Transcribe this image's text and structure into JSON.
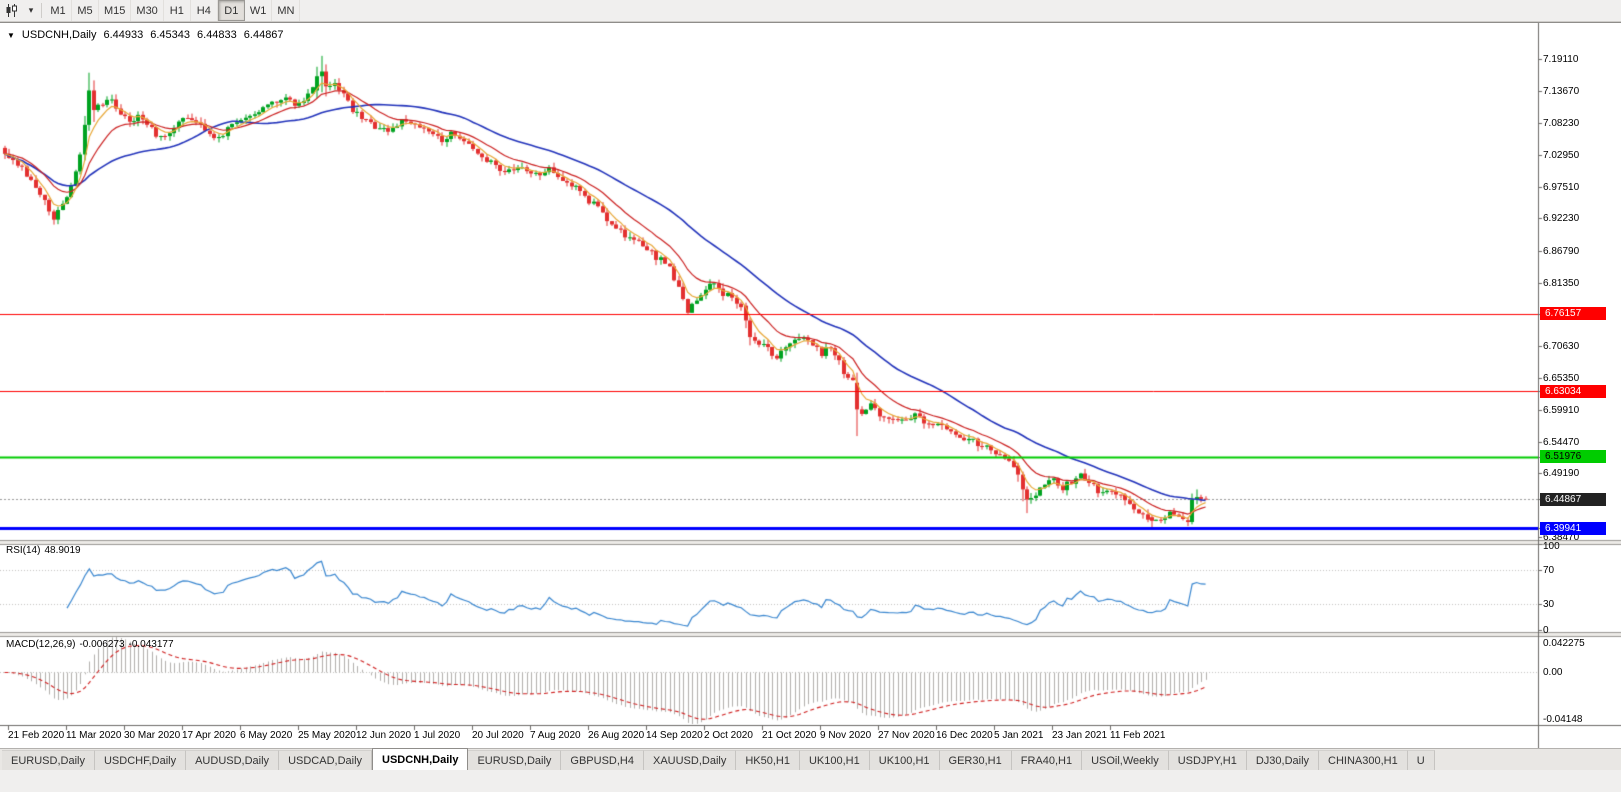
{
  "toolbar": {
    "chart_type_icon": "candlestick-chart-icon",
    "chart_type_dropdown_icon": "chevron-down-icon",
    "timeframes": [
      "M1",
      "M5",
      "M15",
      "M30",
      "H1",
      "H4",
      "D1",
      "W1",
      "MN"
    ],
    "active_timeframe": "D1"
  },
  "chart": {
    "symbol_label": "USDCNH,Daily",
    "one_click_icon": "▼",
    "ohlc": {
      "open": "6.44933",
      "high": "6.45343",
      "low": "6.44833",
      "close": "6.44867"
    }
  },
  "indicators": {
    "rsi": {
      "label": "RSI(14)",
      "value": "48.9019",
      "axis": [
        "100",
        "70",
        "30",
        "0"
      ],
      "levels": [
        70,
        30
      ],
      "line_color": "#3a87d0"
    },
    "macd": {
      "label": "MACD(12,26,9)",
      "value1": "-0.006273",
      "value2": "-0.043177",
      "axis_max": "0.042275",
      "axis_zero": "0.00",
      "axis_min": "-0.04148",
      "hist_color": "#b2b0ad",
      "signal_color": "#d02020"
    }
  },
  "price_axis": {
    "ticks": [
      "7.19110",
      "7.13670",
      "7.08230",
      "7.02950",
      "6.97510",
      "6.92230",
      "6.86790",
      "6.81350",
      "6.70630",
      "6.65350",
      "6.59910",
      "6.54470",
      "6.49190",
      "6.38470"
    ],
    "badges": [
      {
        "name": "resistance-upper",
        "value": "6.76157",
        "bg": "#ff0000",
        "fg": "#ffffff"
      },
      {
        "name": "resistance-lower",
        "value": "6.63034",
        "bg": "#ff0000",
        "fg": "#ffffff"
      },
      {
        "name": "support-green",
        "value": "6.51976",
        "bg": "#00cc00",
        "fg": "#000000"
      },
      {
        "name": "current-price",
        "value": "6.44867",
        "bg": "#222222",
        "fg": "#ffffff"
      },
      {
        "name": "support-blue",
        "value": "6.39941",
        "bg": "#0000ff",
        "fg": "#ffffff"
      }
    ]
  },
  "tabs": {
    "items": [
      "EURUSD,Daily",
      "USDCHF,Daily",
      "AUDUSD,Daily",
      "USDCAD,Daily",
      "USDCNH,Daily",
      "EURUSD,Daily",
      "GBPUSD,H4",
      "XAUUSD,Daily",
      "HK50,H1",
      "UK100,H1",
      "UK100,H1",
      "GER30,H1",
      "FRA40,H1",
      "USOil,Weekly",
      "USDJPY,H1",
      "DJ30,Daily",
      "CHINA300,H1",
      "U"
    ],
    "active_index": 4
  },
  "chart_data": {
    "type": "candlestick",
    "symbol": "USDCNH",
    "timeframe": "Daily",
    "bars": 270,
    "visible_high": 7.1964,
    "visible_low": 6.401,
    "last_ohlc": {
      "open": 6.44933,
      "high": 6.45343,
      "low": 6.44833,
      "close": 6.44867
    },
    "x_labels": [
      "21 Feb 2020",
      "11 Mar 2020",
      "30 Mar 2020",
      "17 Apr 2020",
      "6 May 2020",
      "25 May 2020",
      "12 Jun 2020",
      "1 Jul 2020",
      "20 Jul 2020",
      "7 Aug 2020",
      "26 Aug 2020",
      "14 Sep 2020",
      "2 Oct 2020",
      "21 Oct 2020",
      "9 Nov 2020",
      "27 Nov 2020",
      "16 Dec 2020",
      "5 Jan 2021",
      "23 Jan 2021",
      "11 Feb 2021"
    ],
    "colors": {
      "up": "#00a321",
      "down": "#e33030"
    },
    "close_anchors": [
      [
        0,
        7.035
      ],
      [
        2,
        7.02
      ],
      [
        4,
        7.005
      ],
      [
        6,
        6.988
      ],
      [
        8,
        6.962
      ],
      [
        10,
        6.938
      ],
      [
        11,
        6.924
      ],
      [
        13,
        6.95
      ],
      [
        15,
        6.975
      ],
      [
        17,
        7.03
      ],
      [
        18,
        7.08
      ],
      [
        19,
        7.138
      ],
      [
        20,
        7.105
      ],
      [
        22,
        7.115
      ],
      [
        24,
        7.122
      ],
      [
        26,
        7.1
      ],
      [
        28,
        7.088
      ],
      [
        30,
        7.095
      ],
      [
        32,
        7.078
      ],
      [
        34,
        7.065
      ],
      [
        36,
        7.06
      ],
      [
        38,
        7.075
      ],
      [
        40,
        7.088
      ],
      [
        42,
        7.093
      ],
      [
        44,
        7.078
      ],
      [
        46,
        7.065
      ],
      [
        48,
        7.06
      ],
      [
        50,
        7.072
      ],
      [
        52,
        7.082
      ],
      [
        54,
        7.09
      ],
      [
        56,
        7.098
      ],
      [
        58,
        7.108
      ],
      [
        60,
        7.118
      ],
      [
        62,
        7.126
      ],
      [
        64,
        7.118
      ],
      [
        66,
        7.112
      ],
      [
        68,
        7.135
      ],
      [
        70,
        7.162
      ],
      [
        71,
        7.17
      ],
      [
        72,
        7.145
      ],
      [
        74,
        7.152
      ],
      [
        76,
        7.132
      ],
      [
        78,
        7.105
      ],
      [
        80,
        7.092
      ],
      [
        82,
        7.085
      ],
      [
        84,
        7.07
      ],
      [
        86,
        7.072
      ],
      [
        88,
        7.08
      ],
      [
        90,
        7.088
      ],
      [
        92,
        7.082
      ],
      [
        94,
        7.076
      ],
      [
        96,
        7.062
      ],
      [
        98,
        7.052
      ],
      [
        100,
        7.065
      ],
      [
        102,
        7.055
      ],
      [
        104,
        7.044
      ],
      [
        106,
        7.032
      ],
      [
        108,
        7.02
      ],
      [
        110,
        7.012
      ],
      [
        112,
        7.002
      ],
      [
        114,
        7.004
      ],
      [
        116,
        7.008
      ],
      [
        118,
        6.994
      ],
      [
        120,
        7.0
      ],
      [
        122,
        7.006
      ],
      [
        124,
        6.99
      ],
      [
        126,
        6.982
      ],
      [
        129,
        6.968
      ],
      [
        132,
        6.945
      ],
      [
        135,
        6.922
      ],
      [
        138,
        6.9
      ],
      [
        141,
        6.885
      ],
      [
        144,
        6.868
      ],
      [
        147,
        6.852
      ],
      [
        149,
        6.838
      ],
      [
        151,
        6.802
      ],
      [
        153,
        6.765
      ],
      [
        155,
        6.785
      ],
      [
        157,
        6.802
      ],
      [
        159,
        6.812
      ],
      [
        161,
        6.796
      ],
      [
        163,
        6.788
      ],
      [
        165,
        6.775
      ],
      [
        166,
        6.75
      ],
      [
        167,
        6.722
      ],
      [
        169,
        6.71
      ],
      [
        171,
        6.7
      ],
      [
        173,
        6.69
      ],
      [
        175,
        6.7
      ],
      [
        177,
        6.712
      ],
      [
        179,
        6.722
      ],
      [
        181,
        6.708
      ],
      [
        183,
        6.695
      ],
      [
        185,
        6.708
      ],
      [
        187,
        6.678
      ],
      [
        188,
        6.662
      ],
      [
        190,
        6.645
      ],
      [
        191,
        6.6
      ],
      [
        192,
        6.59
      ],
      [
        194,
        6.605
      ],
      [
        196,
        6.592
      ],
      [
        198,
        6.582
      ],
      [
        200,
        6.578
      ],
      [
        202,
        6.585
      ],
      [
        204,
        6.592
      ],
      [
        206,
        6.578
      ],
      [
        208,
        6.568
      ],
      [
        210,
        6.574
      ],
      [
        212,
        6.558
      ],
      [
        214,
        6.548
      ],
      [
        216,
        6.553
      ],
      [
        218,
        6.542
      ],
      [
        220,
        6.534
      ],
      [
        222,
        6.526
      ],
      [
        224,
        6.514
      ],
      [
        226,
        6.505
      ],
      [
        227,
        6.49
      ],
      [
        228,
        6.465
      ],
      [
        229,
        6.448
      ],
      [
        231,
        6.458
      ],
      [
        233,
        6.472
      ],
      [
        235,
        6.482
      ],
      [
        237,
        6.469
      ],
      [
        239,
        6.478
      ],
      [
        241,
        6.488
      ],
      [
        243,
        6.477
      ],
      [
        245,
        6.463
      ],
      [
        247,
        6.468
      ],
      [
        249,
        6.456
      ],
      [
        251,
        6.448
      ],
      [
        253,
        6.433
      ],
      [
        255,
        6.422
      ],
      [
        257,
        6.412
      ],
      [
        259,
        6.418
      ],
      [
        261,
        6.425
      ],
      [
        263,
        6.416
      ],
      [
        265,
        6.41
      ],
      [
        266,
        6.448
      ],
      [
        267,
        6.452
      ],
      [
        269,
        6.44867
      ]
    ],
    "special_bars": [
      {
        "i": 18,
        "o": 7.03,
        "h": 7.095,
        "l": 7.02,
        "c": 7.08
      },
      {
        "i": 19,
        "o": 7.08,
        "h": 7.168,
        "l": 7.07,
        "c": 7.138
      },
      {
        "i": 20,
        "o": 7.138,
        "h": 7.155,
        "l": 7.085,
        "c": 7.105
      },
      {
        "i": 70,
        "o": 7.138,
        "h": 7.178,
        "l": 7.125,
        "c": 7.162
      },
      {
        "i": 71,
        "o": 7.162,
        "h": 7.1964,
        "l": 7.135,
        "c": 7.17
      },
      {
        "i": 72,
        "o": 7.17,
        "h": 7.182,
        "l": 7.128,
        "c": 7.145
      },
      {
        "i": 166,
        "o": 6.775,
        "h": 6.78,
        "l": 6.737,
        "c": 6.75
      },
      {
        "i": 167,
        "o": 6.75,
        "h": 6.755,
        "l": 6.708,
        "c": 6.722
      },
      {
        "i": 191,
        "o": 6.645,
        "h": 6.662,
        "l": 6.555,
        "c": 6.6
      },
      {
        "i": 227,
        "o": 6.505,
        "h": 6.51,
        "l": 6.478,
        "c": 6.49
      },
      {
        "i": 228,
        "o": 6.49,
        "h": 6.495,
        "l": 6.445,
        "c": 6.465
      },
      {
        "i": 229,
        "o": 6.465,
        "h": 6.47,
        "l": 6.425,
        "c": 6.448
      },
      {
        "i": 257,
        "o": 6.418,
        "h": 6.422,
        "l": 6.401,
        "c": 6.412
      },
      {
        "i": 265,
        "o": 6.413,
        "h": 6.418,
        "l": 6.403,
        "c": 6.41
      },
      {
        "i": 266,
        "o": 6.41,
        "h": 6.458,
        "l": 6.406,
        "c": 6.448
      },
      {
        "i": 267,
        "o": 6.448,
        "h": 6.465,
        "l": 6.44,
        "c": 6.452
      },
      {
        "i": 268,
        "o": 6.452,
        "h": 6.456,
        "l": 6.443,
        "c": 6.449
      },
      {
        "i": 269,
        "o": 6.44933,
        "h": 6.45343,
        "l": 6.44833,
        "c": 6.44867
      }
    ],
    "hlines": [
      {
        "price": 6.76157,
        "color": "#ff0000",
        "width": 1
      },
      {
        "price": 6.63034,
        "color": "#ff0000",
        "width": 1
      },
      {
        "price": 6.51976,
        "color": "#00cc00",
        "width": 2
      },
      {
        "price": 6.39941,
        "color": "#0000ff",
        "width": 3
      }
    ],
    "moving_averages": [
      {
        "type": "sma",
        "period": 34,
        "color": "#2233bb",
        "width": 1.6
      },
      {
        "type": "ema",
        "period": 13,
        "color": "#cc2222",
        "width": 1.2
      },
      {
        "type": "ema",
        "period": 5,
        "color": "#e8a838",
        "width": 1.2
      }
    ],
    "rsi_current": 48.9019,
    "macd_current": -0.006273,
    "macd_signal_current": -0.043177
  }
}
